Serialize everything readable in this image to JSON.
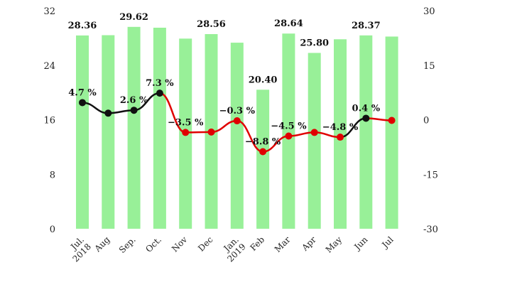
{
  "chart_data": {
    "type": "bar",
    "categories": [
      "Jul.\n2018",
      "Aug",
      "Sep.",
      "Oct.",
      "Nov",
      "Dec",
      "Jan.\n2019",
      "Feb",
      "Mar",
      "Apr",
      "May",
      "Jun",
      "Jul"
    ],
    "series": [
      {
        "type": "bar",
        "axis": "left",
        "color": "#98f098",
        "values": [
          28.36,
          28.4,
          29.62,
          29.5,
          27.9,
          28.56,
          27.3,
          20.4,
          28.64,
          25.8,
          27.8,
          28.37,
          28.2
        ],
        "labels": [
          "28.36",
          "",
          "29.62",
          "",
          "",
          "28.56",
          "",
          "20.40",
          "28.64",
          "25.80",
          "",
          "28.37",
          ""
        ]
      },
      {
        "type": "line",
        "axis": "right",
        "values": [
          4.7,
          1.8,
          2.6,
          7.3,
          -3.5,
          -3.4,
          -0.3,
          -8.8,
          -4.5,
          -3.5,
          -4.8,
          0.4,
          -0.2
        ],
        "labels": [
          "4.7 %",
          "",
          "2.6 %",
          "7.3 %",
          "−3.5 %",
          "",
          "−0.3 %",
          "−8.8 %",
          "−4.5 %",
          "",
          "−4.8 %",
          "0.4 %",
          ""
        ],
        "positive_color": "#111111",
        "negative_color": "#e00000"
      }
    ],
    "y_left": {
      "min": 0,
      "max": 32,
      "ticks": [
        0,
        8,
        16,
        24,
        32
      ]
    },
    "y_right": {
      "min": -30,
      "max": 30,
      "ticks": [
        "-30",
        "-15",
        "0",
        "15",
        "30"
      ]
    },
    "grid": false,
    "colors": {
      "bars": "#98f098",
      "positive": "#111111",
      "negative": "#e00000"
    }
  }
}
